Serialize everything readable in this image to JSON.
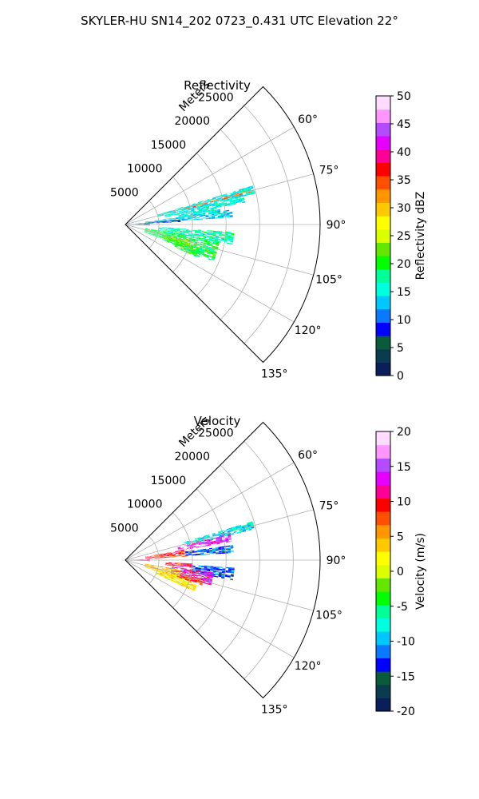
{
  "figure": {
    "suptitle": "SKYLER-HU  SN14_202  0723_0.431 UTC Elevation 22°"
  },
  "chart_data": [
    {
      "type": "heatmap",
      "subtype": "polar-sector (radar PPI)",
      "title": "Reflectivity",
      "range_label": "Meters",
      "range_ticks": [
        5000,
        10000,
        15000,
        20000,
        25000
      ],
      "range_max": 29000,
      "azimuth_ticks": [
        "60°",
        "75°",
        "90°",
        "105°",
        "120°",
        "135°"
      ],
      "azimuth_tick_values": [
        60,
        75,
        90,
        105,
        120,
        135
      ],
      "azimuth_range": [
        45,
        135
      ],
      "grid": true,
      "colorbar": {
        "label": "Reflectivity dBZ",
        "min": 0,
        "max": 50,
        "ticks": [
          "0",
          "5",
          "10",
          "15",
          "20",
          "25",
          "30",
          "35",
          "40",
          "45",
          "50"
        ],
        "colormap": [
          "#0a1e5a",
          "#0a3c50",
          "#0a5a3c",
          "#0000ff",
          "#0a78ff",
          "#00c8ff",
          "#00ffdc",
          "#00ff96",
          "#00ff00",
          "#64e600",
          "#dcff00",
          "#ffff00",
          "#ffc800",
          "#ff9600",
          "#ff5000",
          "#ff0000",
          "#ff0096",
          "#e600ff",
          "#b44bff",
          "#ff96ff",
          "#ffdcff"
        ]
      },
      "echo_regions": [
        {
          "az": [
            73,
            76
          ],
          "r": [
            5000,
            19500
          ],
          "value": 15
        },
        {
          "az": [
            76,
            79
          ],
          "r": [
            6000,
            18000
          ],
          "value": 15
        },
        {
          "az": [
            79,
            82
          ],
          "r": [
            8000,
            14000
          ],
          "value": 15
        },
        {
          "az": [
            74.5,
            75.5
          ],
          "r": [
            9000,
            19000
          ],
          "value": 33
        },
        {
          "az": [
            82,
            86
          ],
          "r": [
            3000,
            16000
          ],
          "value": 14
        },
        {
          "az": [
            85,
            87
          ],
          "r": [
            1500,
            8000
          ],
          "value": 6
        },
        {
          "az": [
            88,
            92
          ],
          "r": [
            500,
            3500
          ],
          "value": 8
        },
        {
          "az": [
            94,
            100
          ],
          "r": [
            5000,
            16000
          ],
          "value": 17
        },
        {
          "az": [
            100,
            112
          ],
          "r": [
            3000,
            14000
          ],
          "value": 19
        },
        {
          "az": [
            104,
            110
          ],
          "r": [
            6000,
            10000
          ],
          "value": 22
        },
        {
          "az": [
            108,
            114
          ],
          "r": [
            8000,
            12000
          ],
          "value": 20
        }
      ]
    },
    {
      "type": "heatmap",
      "subtype": "polar-sector (radar PPI)",
      "title": "Velocity",
      "range_label": "Meters",
      "range_ticks": [
        5000,
        10000,
        15000,
        20000,
        25000
      ],
      "range_max": 29000,
      "azimuth_ticks": [
        "60°",
        "75°",
        "90°",
        "105°",
        "120°",
        "135°"
      ],
      "azimuth_tick_values": [
        60,
        75,
        90,
        105,
        120,
        135
      ],
      "azimuth_range": [
        45,
        135
      ],
      "grid": true,
      "colorbar": {
        "label": "Velocity (m/s)",
        "min": -20,
        "max": 20,
        "ticks": [
          "-20",
          "-15",
          "-10",
          "-5",
          "0",
          "5",
          "10",
          "15",
          "20"
        ],
        "colormap": [
          "#0a1e5a",
          "#0a3c50",
          "#0a5a3c",
          "#0000ff",
          "#0a78ff",
          "#00c8ff",
          "#00ffdc",
          "#00ff96",
          "#00ff00",
          "#64e600",
          "#dcff00",
          "#ffff00",
          "#ffc800",
          "#ff9600",
          "#ff5000",
          "#ff0000",
          "#ff0096",
          "#e600ff",
          "#b44bff",
          "#ff96ff",
          "#ffdcff"
        ]
      },
      "echo_regions": [
        {
          "az": [
            73,
            76
          ],
          "r": [
            9000,
            19500
          ],
          "value": -8
        },
        {
          "az": [
            76,
            80
          ],
          "r": [
            8000,
            16000
          ],
          "value": 14
        },
        {
          "az": [
            80,
            86
          ],
          "r": [
            3000,
            9000
          ],
          "value": 9
        },
        {
          "az": [
            82,
            86
          ],
          "r": [
            9000,
            16000
          ],
          "value": -12
        },
        {
          "az": [
            88,
            92
          ],
          "r": [
            500,
            3500
          ],
          "value": 13
        },
        {
          "az": [
            93,
            97
          ],
          "r": [
            6000,
            10000
          ],
          "value": 10
        },
        {
          "az": [
            94,
            100
          ],
          "r": [
            10000,
            16000
          ],
          "value": -12
        },
        {
          "az": [
            98,
            106
          ],
          "r": [
            7000,
            13000
          ],
          "value": 13
        },
        {
          "az": [
            100,
            110
          ],
          "r": [
            3000,
            8000
          ],
          "value": 4
        },
        {
          "az": [
            106,
            114
          ],
          "r": [
            5000,
            11000
          ],
          "value": 2
        },
        {
          "az": [
            104,
            108
          ],
          "r": [
            8000,
            12000
          ],
          "value": 9
        }
      ]
    }
  ]
}
